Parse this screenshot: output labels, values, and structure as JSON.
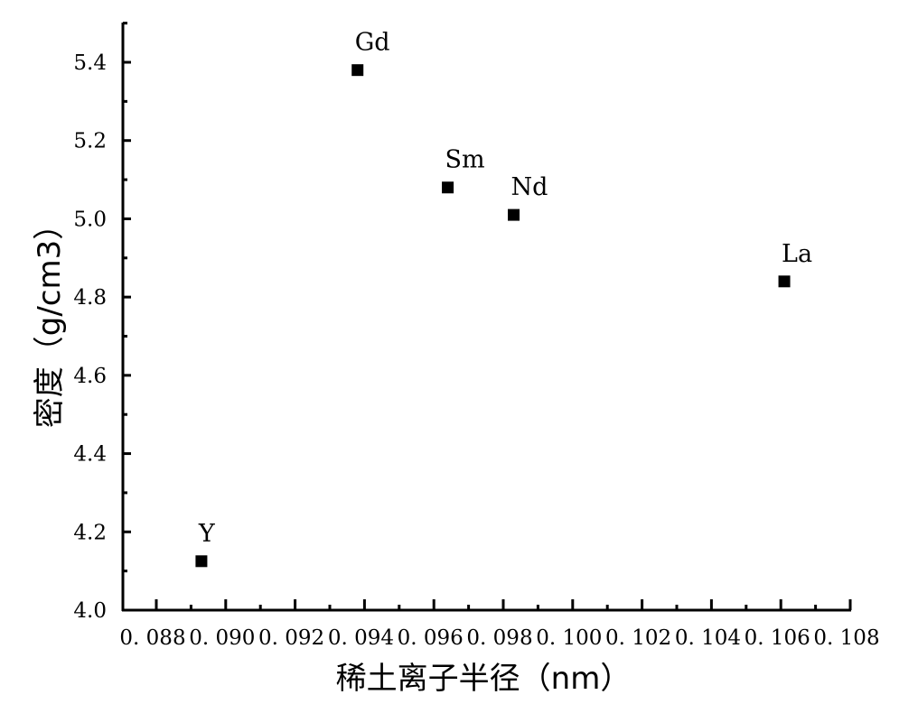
{
  "chart_data": {
    "type": "scatter",
    "xlabel": "稀土离子半径（nm）",
    "ylabel": "密度（g/cm3）",
    "xlim": [
      0.087,
      0.108
    ],
    "ylim": [
      4.0,
      5.5
    ],
    "x_ticks": [
      "0.088",
      "0.090",
      "0.092",
      "0.094",
      "0.096",
      "0.098",
      "0.100",
      "0.102",
      "0.104",
      "0.106",
      "0.108"
    ],
    "y_ticks": [
      "4.0",
      "4.2",
      "4.4",
      "4.6",
      "4.8",
      "5.0",
      "5.2",
      "5.4"
    ],
    "grid": false,
    "marker": "square",
    "marker_color": "#000000",
    "points": [
      {
        "label": "Y",
        "x": 0.0893,
        "y": 4.125
      },
      {
        "label": "Gd",
        "x": 0.0938,
        "y": 5.38
      },
      {
        "label": "Sm",
        "x": 0.0964,
        "y": 5.08
      },
      {
        "label": "Nd",
        "x": 0.0983,
        "y": 5.01
      },
      {
        "label": "La",
        "x": 0.1061,
        "y": 4.84
      }
    ]
  }
}
